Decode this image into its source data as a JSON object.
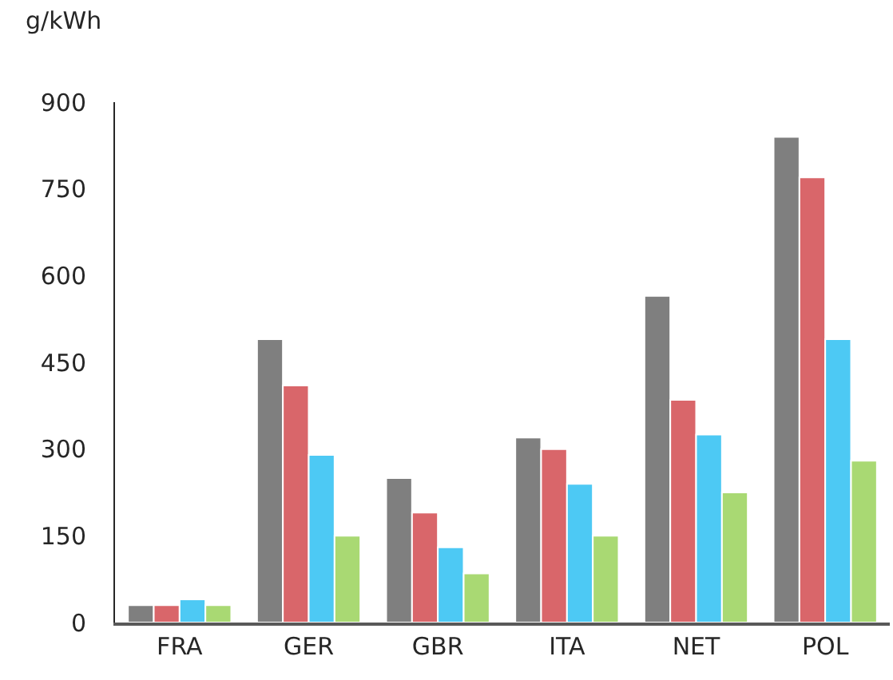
{
  "chart_data": {
    "type": "bar",
    "ylabel": "g/kWh",
    "categories": [
      "FRA",
      "GER",
      "GBR",
      "ITA",
      "NET",
      "POL"
    ],
    "series": [
      {
        "color": "#7f7f7f",
        "values": [
          30,
          490,
          250,
          320,
          565,
          840
        ]
      },
      {
        "color": "#d9666a",
        "values": [
          30,
          410,
          190,
          300,
          385,
          770
        ]
      },
      {
        "color": "#4dc9f4",
        "values": [
          40,
          290,
          130,
          240,
          325,
          490
        ]
      },
      {
        "color": "#a9d973",
        "values": [
          30,
          150,
          85,
          150,
          225,
          280
        ]
      }
    ],
    "ylim": [
      0,
      900
    ],
    "yticks": [
      0,
      150,
      300,
      450,
      600,
      750,
      900
    ],
    "grid": false
  }
}
